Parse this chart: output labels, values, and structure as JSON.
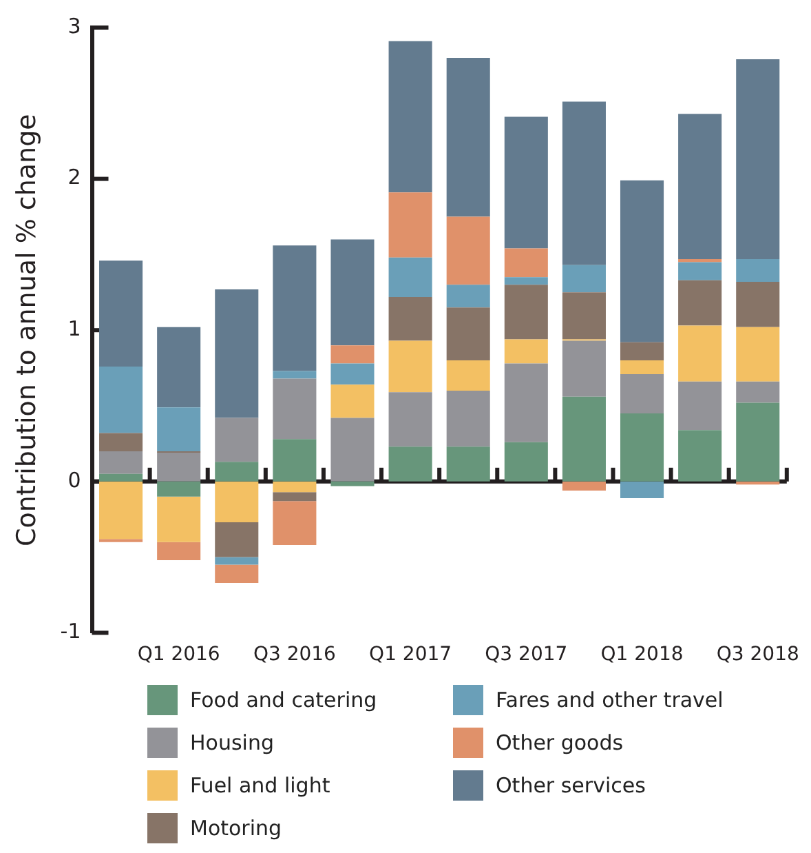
{
  "chart_data": {
    "type": "bar",
    "stacked": true,
    "ylabel": "Contribution to annual % change",
    "legend": "bottom",
    "grid": false,
    "categories": [
      null,
      "Q1 2016",
      null,
      "Q3 2016",
      null,
      "Q1 2017",
      null,
      "Q3 2017",
      null,
      "Q1 2018",
      null,
      "Q3 2018"
    ],
    "ref_lines": [
      {
        "axis": "y",
        "value": 0,
        "color": "#231f20"
      }
    ],
    "ylim": [
      -1,
      3
    ],
    "yticks": [
      -1,
      0,
      1,
      2,
      3
    ],
    "series": [
      {
        "name": "Food and catering",
        "color": "#67967b",
        "values": [
          0.05,
          -0.1,
          0.13,
          0.28,
          -0.03,
          0.23,
          0.23,
          0.26,
          0.56,
          0.45,
          0.34,
          0.52
        ]
      },
      {
        "name": "Housing",
        "color": "#939398",
        "values": [
          0.15,
          0.19,
          0.29,
          0.4,
          0.42,
          0.36,
          0.37,
          0.52,
          0.37,
          0.26,
          0.32,
          0.14
        ]
      },
      {
        "name": "Fuel and light",
        "color": "#f3c063",
        "values": [
          -0.38,
          -0.3,
          -0.27,
          -0.07,
          0.22,
          0.34,
          0.2,
          0.16,
          0.01,
          0.09,
          0.37,
          0.36
        ]
      },
      {
        "name": "Motoring",
        "color": "#877467",
        "values": [
          0.12,
          0.01,
          -0.23,
          -0.06,
          null,
          0.29,
          0.35,
          0.36,
          0.31,
          0.12,
          0.3,
          0.3
        ]
      },
      {
        "name": "Fares and other travel",
        "color": "#6a9fb8",
        "values": [
          0.44,
          0.29,
          -0.05,
          0.05,
          0.14,
          0.26,
          0.15,
          0.05,
          0.18,
          -0.11,
          0.12,
          0.15
        ]
      },
      {
        "name": "Other goods",
        "color": "#e0916a",
        "values": [
          -0.02,
          -0.12,
          -0.12,
          -0.29,
          0.12,
          0.43,
          0.45,
          0.19,
          -0.06,
          null,
          0.02,
          -0.02
        ]
      },
      {
        "name": "Other services",
        "color": "#637b8f",
        "values": [
          0.7,
          0.53,
          0.85,
          0.83,
          0.7,
          1.0,
          1.05,
          0.87,
          1.08,
          1.07,
          0.96,
          1.32
        ]
      }
    ]
  }
}
